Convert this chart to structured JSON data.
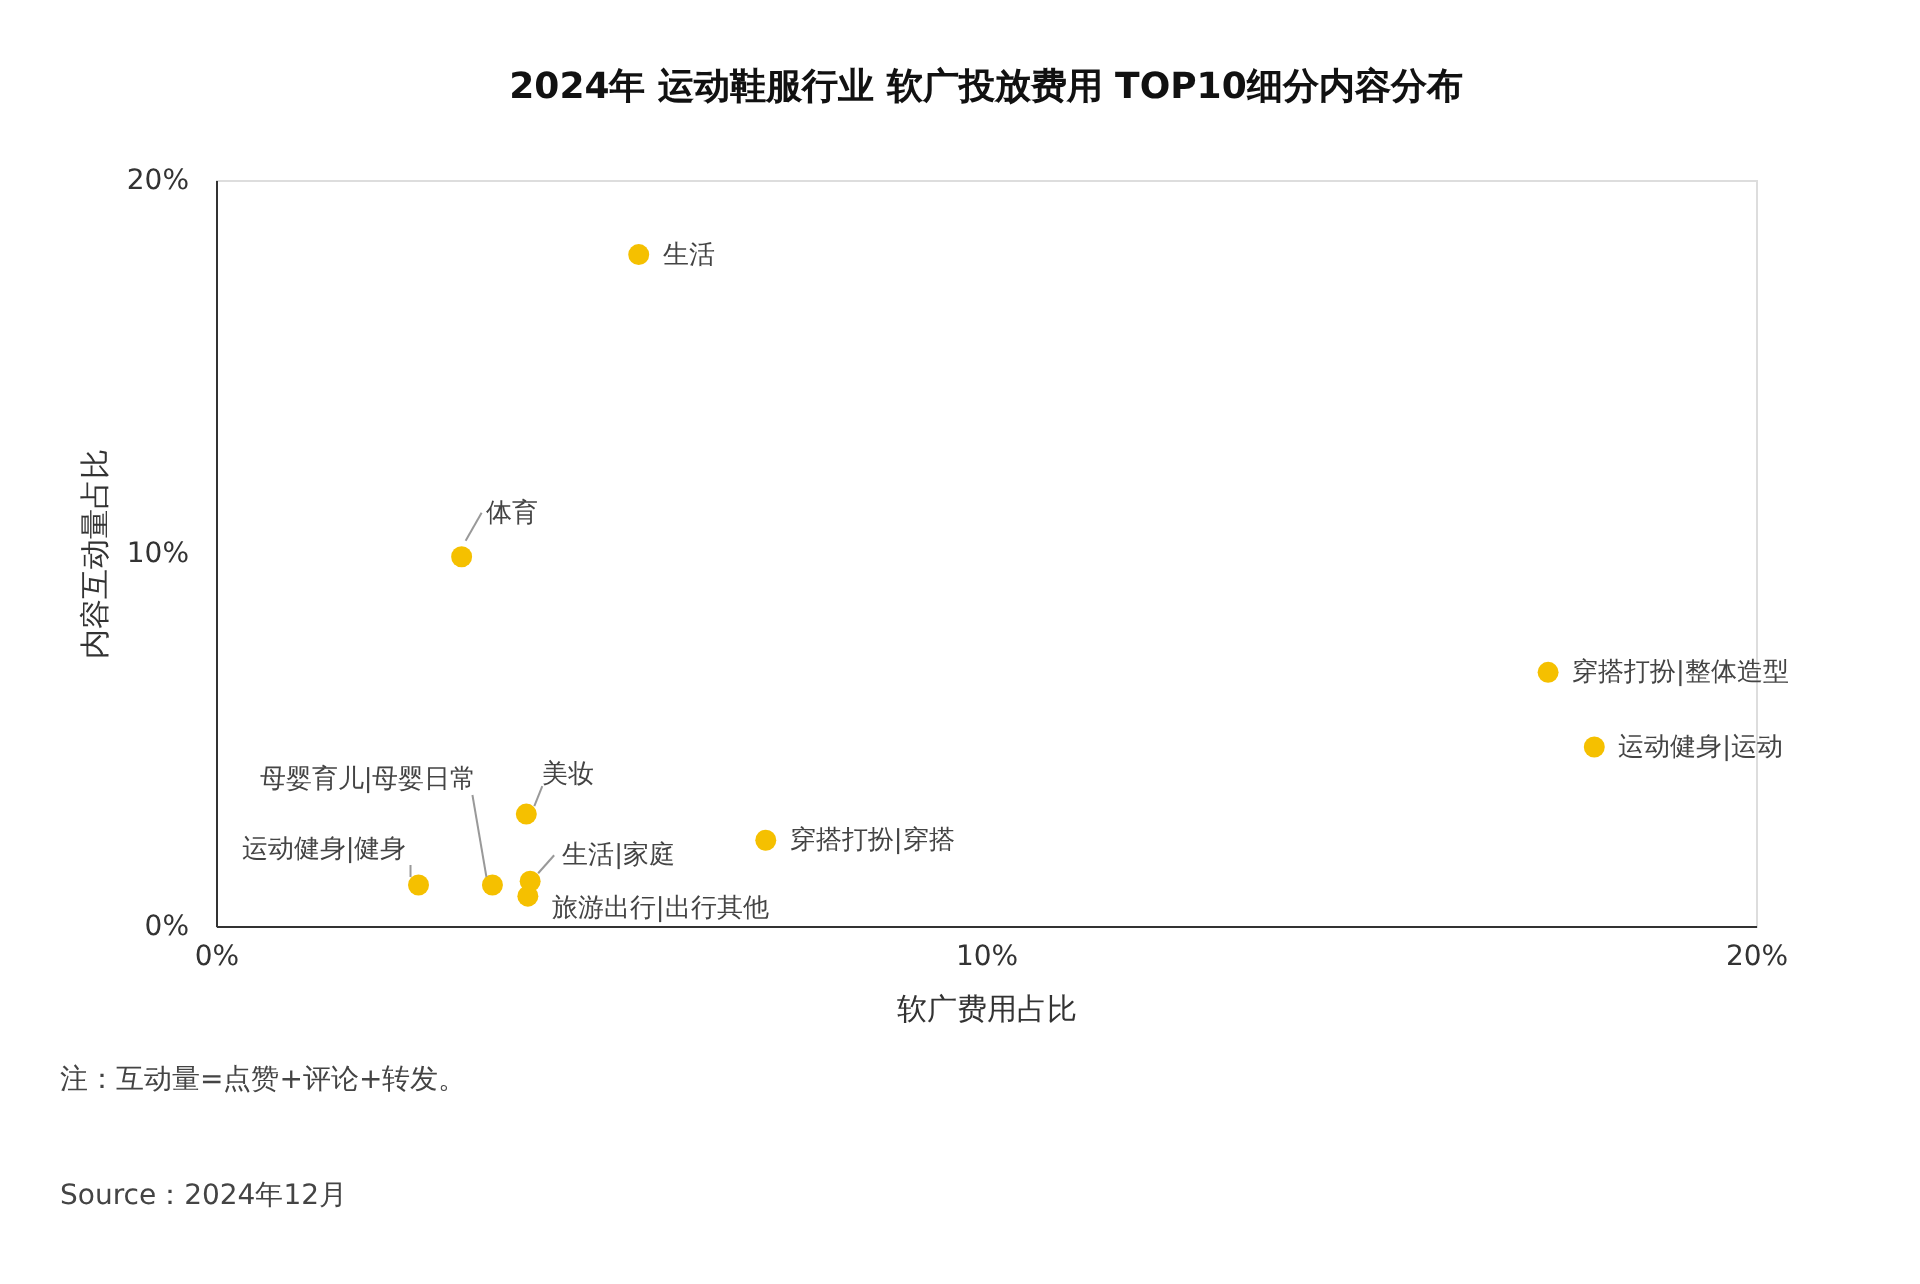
{
  "chart_data": {
    "type": "scatter",
    "title": "2024年 运动鞋服行业 软广投放费用 TOP10细分内容分布",
    "xlabel": "软广费用占比",
    "ylabel": "内容互动量占比",
    "x": [
      5.49,
      3.19,
      17.3,
      17.9,
      4.03,
      7.14,
      4.08,
      4.05,
      3.59,
      2.63
    ],
    "series": [
      {
        "color": "#f5c000",
        "values": [
          18.0,
          9.9,
          6.8,
          4.8,
          3.0,
          2.3,
          1.2,
          0.8,
          1.1,
          1.1
        ]
      }
    ],
    "xlim": [
      0,
      20
    ],
    "ylim": [
      0,
      20
    ],
    "xticks": [
      {
        "value": 0,
        "label": "0%"
      },
      {
        "value": 10,
        "label": "10%"
      },
      {
        "value": 20,
        "label": "20%"
      }
    ],
    "yticks": [
      {
        "value": 0,
        "label": "0%"
      },
      {
        "value": 10,
        "label": "10%"
      },
      {
        "value": 20,
        "label": "20%"
      }
    ],
    "grid": false,
    "marker": "circle",
    "annotations": [
      {
        "text": "生活",
        "x": 5.49,
        "y": 18.0
      },
      {
        "text": "体育",
        "x": 3.19,
        "y": 9.9
      },
      {
        "text": "穿搭打扮|整体造型",
        "x": 17.3,
        "y": 6.8
      },
      {
        "text": "运动健身|运动",
        "x": 17.9,
        "y": 4.8
      },
      {
        "text": "美妆",
        "x": 4.03,
        "y": 3.0
      },
      {
        "text": "穿搭打扮|穿搭",
        "x": 7.14,
        "y": 2.3
      },
      {
        "text": "生活|家庭",
        "x": 4.08,
        "y": 1.2
      },
      {
        "text": "旅游出行|出行其他",
        "x": 4.05,
        "y": 0.8
      },
      {
        "text": "母婴育儿|母婴日常",
        "x": 3.59,
        "y": 1.1
      },
      {
        "text": "运动健身|健身",
        "x": 2.63,
        "y": 1.1
      },
      "注：互动量=点赞+评论+转发。",
      "Source：2024年12月"
    ]
  }
}
